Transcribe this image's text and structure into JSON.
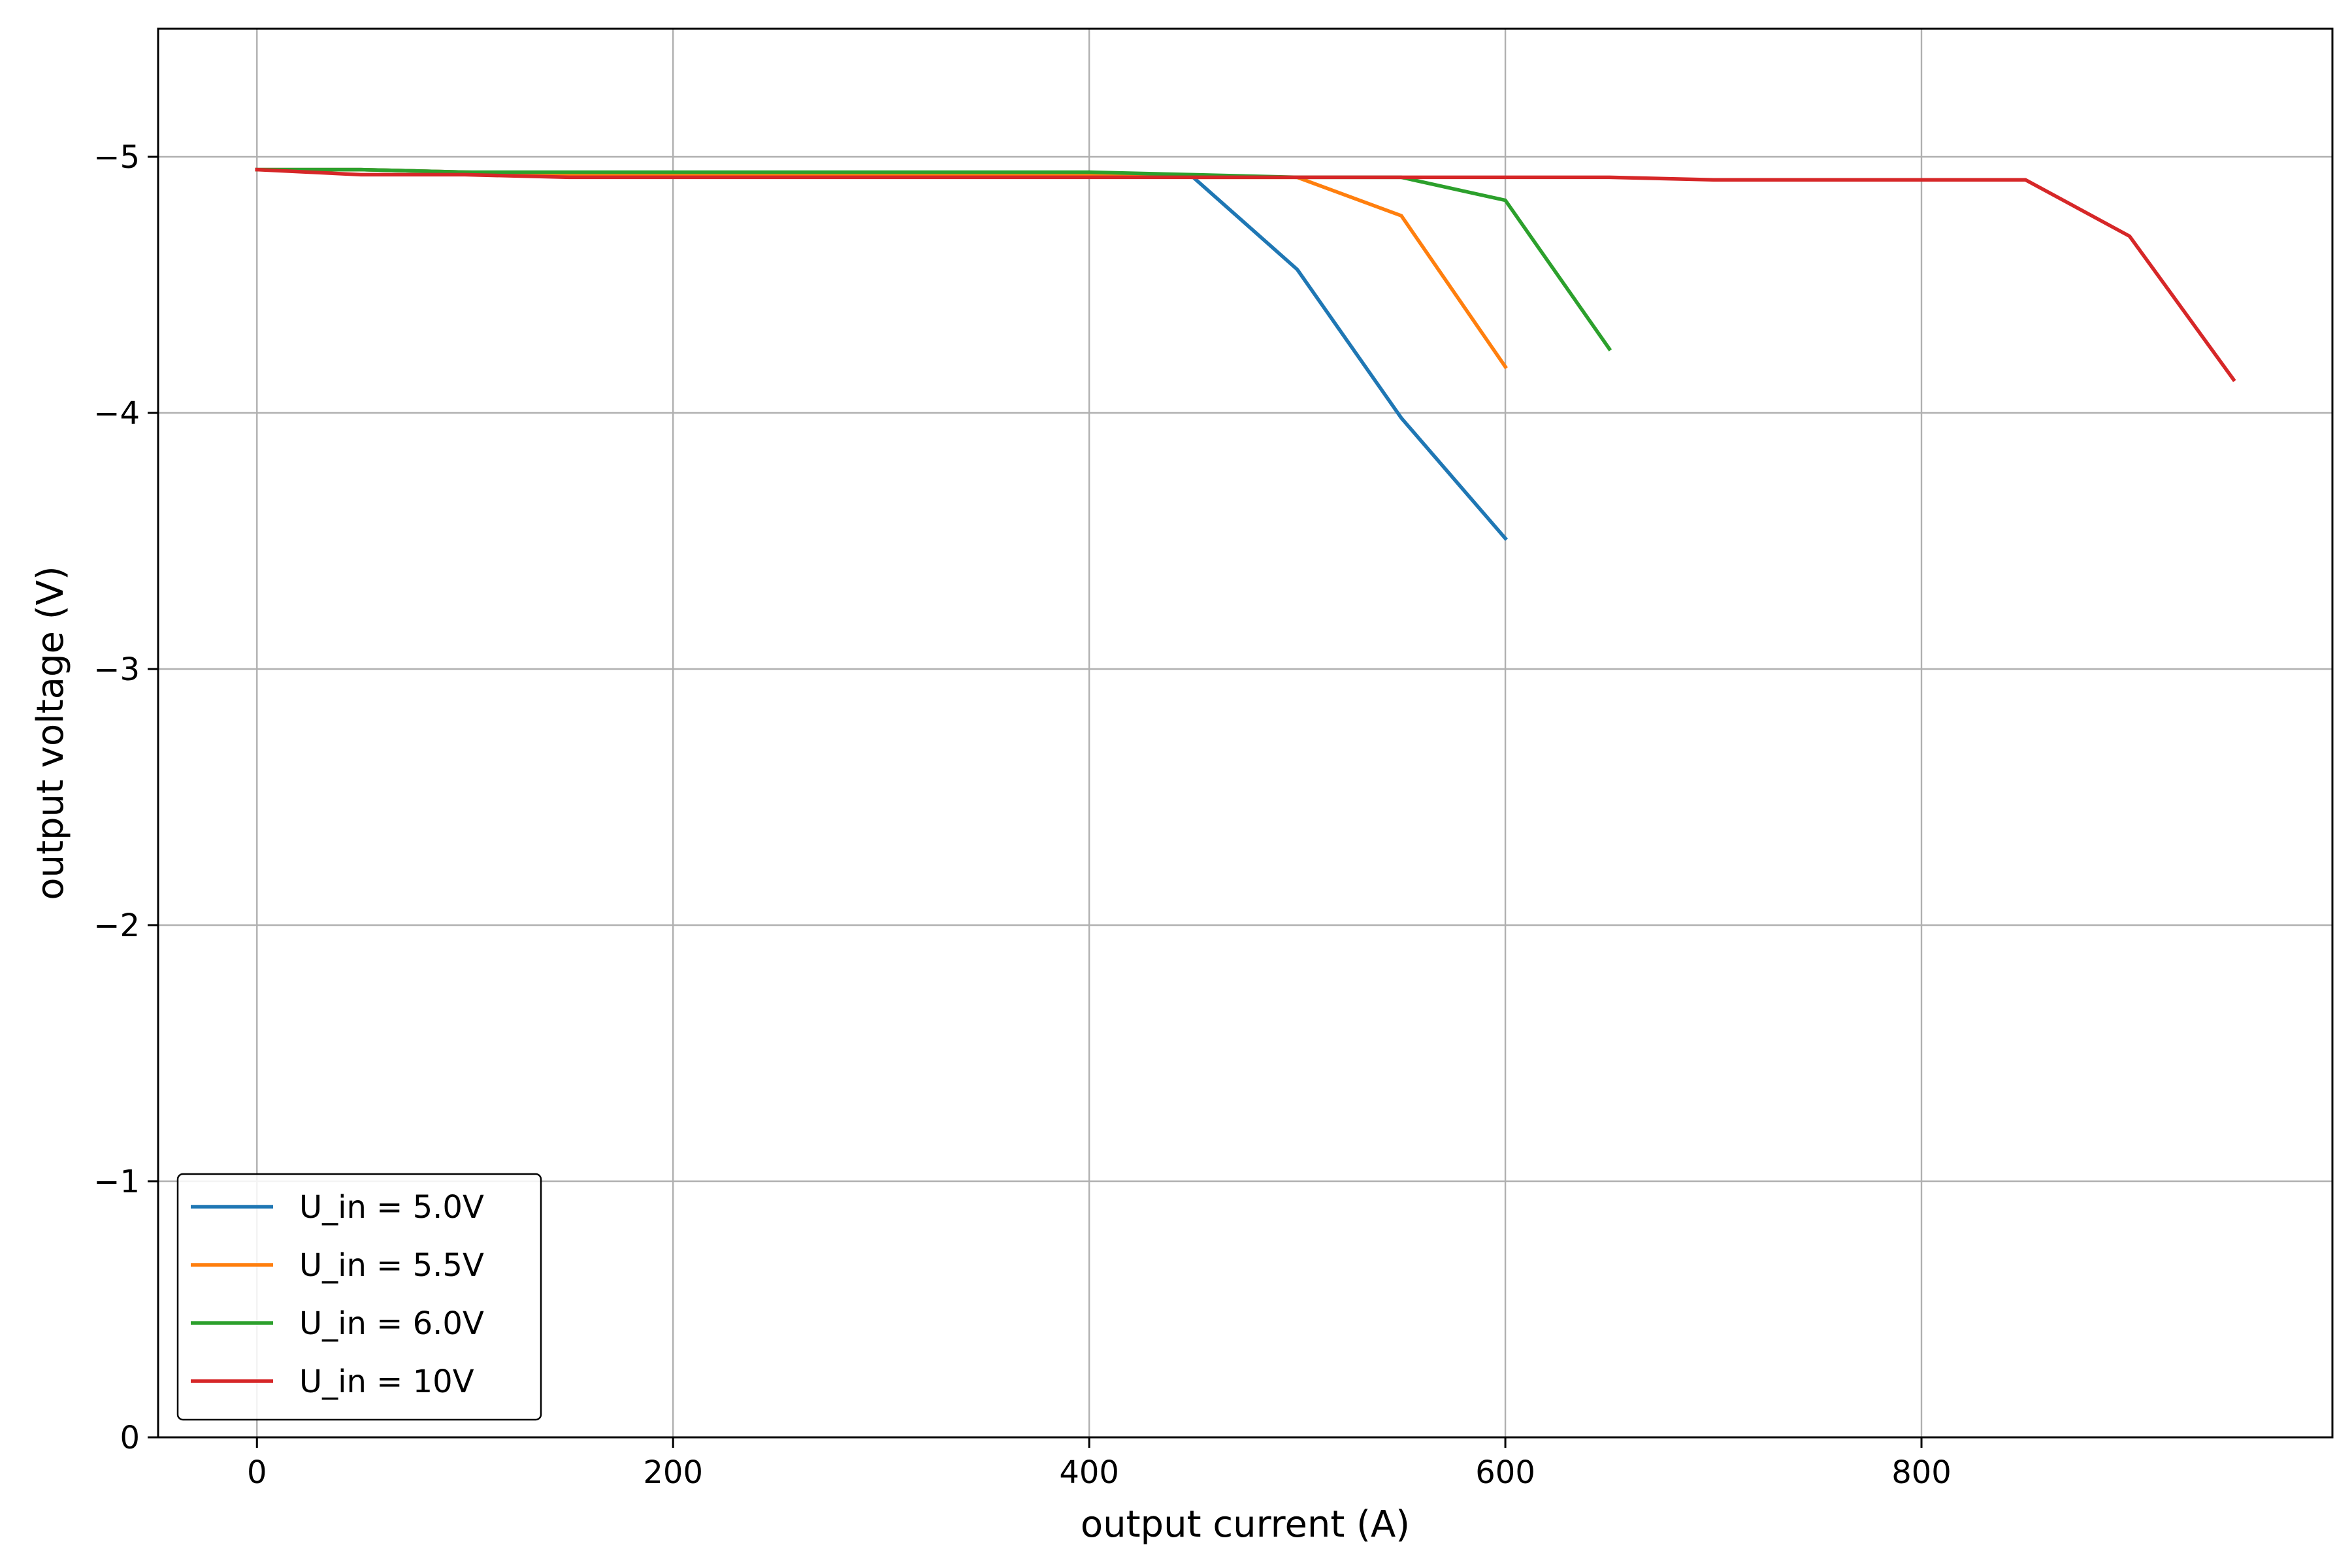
{
  "chart_data": {
    "type": "line",
    "title": "",
    "xlabel": "output current (A)",
    "ylabel": "output voltage (V)",
    "xlim": [
      -47.5,
      997.5
    ],
    "ylim": [
      0,
      -5.5
    ],
    "y_inverted": true,
    "grid": true,
    "legend_position": "lower left",
    "x_ticks": [
      0,
      200,
      400,
      600,
      800
    ],
    "x_tick_labels": [
      "0",
      "200",
      "400",
      "600",
      "800"
    ],
    "y_ticks": [
      0,
      -1,
      -2,
      -3,
      -4,
      -5
    ],
    "y_tick_labels": [
      "0",
      "−1",
      "−2",
      "−3",
      "−4",
      "−5"
    ],
    "series": [
      {
        "name": "U_in = 5.0V",
        "color": "#1f77b4",
        "x": [
          0,
          50,
          100,
          150,
          200,
          250,
          300,
          350,
          400,
          450,
          500,
          550,
          600
        ],
        "y": [
          -4.95,
          -4.95,
          -4.94,
          -4.93,
          -4.93,
          -4.93,
          -4.93,
          -4.93,
          -4.93,
          -4.92,
          -4.56,
          -3.98,
          -3.51
        ]
      },
      {
        "name": "U_in = 5.5V",
        "color": "#ff7f0e",
        "x": [
          0,
          50,
          100,
          150,
          200,
          250,
          300,
          350,
          400,
          450,
          500,
          550,
          600
        ],
        "y": [
          -4.95,
          -4.95,
          -4.94,
          -4.93,
          -4.93,
          -4.93,
          -4.93,
          -4.93,
          -4.93,
          -4.92,
          -4.92,
          -4.77,
          -4.18
        ]
      },
      {
        "name": "U_in = 6.0V",
        "color": "#2ca02c",
        "x": [
          0,
          50,
          100,
          150,
          200,
          250,
          300,
          350,
          400,
          450,
          500,
          550,
          600,
          650
        ],
        "y": [
          -4.95,
          -4.95,
          -4.94,
          -4.94,
          -4.94,
          -4.94,
          -4.94,
          -4.94,
          -4.94,
          -4.93,
          -4.92,
          -4.92,
          -4.83,
          -4.25
        ]
      },
      {
        "name": "U_in = 10V",
        "color": "#d62728",
        "x": [
          0,
          50,
          100,
          150,
          200,
          250,
          300,
          350,
          400,
          450,
          500,
          550,
          600,
          650,
          700,
          750,
          800,
          850,
          900,
          950
        ],
        "y": [
          -4.95,
          -4.93,
          -4.93,
          -4.92,
          -4.92,
          -4.92,
          -4.92,
          -4.92,
          -4.92,
          -4.92,
          -4.92,
          -4.92,
          -4.92,
          -4.92,
          -4.91,
          -4.91,
          -4.91,
          -4.91,
          -4.69,
          -4.13
        ]
      }
    ]
  }
}
